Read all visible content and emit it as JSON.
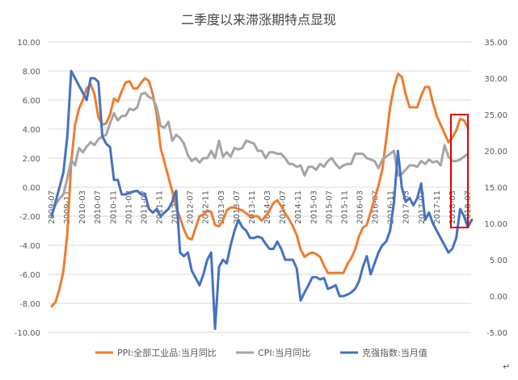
{
  "chart_data": {
    "type": "line",
    "title": "二季度以来滞涨期特点显现",
    "x_labels": [
      "2009-07",
      "2009-11",
      "2010-03",
      "2010-07",
      "2010-11",
      "2011-03",
      "2011-07",
      "2011-11",
      "2012-03",
      "2012-07",
      "2012-11",
      "2013-03",
      "2013-07",
      "2013-11",
      "2014-03",
      "2014-07",
      "2014-11",
      "2015-03",
      "2015-07",
      "2015-11",
      "2016-03",
      "2016-07",
      "2016-11",
      "2017-03",
      "2017-07",
      "2017-11",
      "2018-03",
      "2018-07"
    ],
    "left_axis": {
      "min": -10,
      "max": 10,
      "step": 2,
      "tick_labels": [
        "10.00",
        "8.00",
        "6.00",
        "4.00",
        "2.00",
        "0.00",
        "-2.00",
        "-4.00",
        "-6.00",
        "-8.00",
        "-10.00"
      ]
    },
    "right_axis": {
      "min": -5,
      "max": 35,
      "step": 5,
      "tick_labels": [
        "35.00",
        "30.00",
        "25.00",
        "20.00",
        "15.00",
        "10.00",
        "5.00",
        "0.00",
        "-5.00"
      ]
    },
    "grid": true,
    "legend_position": "bottom",
    "series": [
      {
        "name": "PPI:全部工业品:当月同比",
        "axis": "left",
        "color": "#ED7D31",
        "values": [
          -8.2,
          -7.9,
          -7.0,
          -5.8,
          -3.2,
          1.7,
          4.3,
          5.4,
          6.0,
          6.8,
          7.1,
          6.4,
          4.8,
          4.3,
          4.4,
          5.0,
          6.1,
          5.9,
          6.6,
          7.2,
          7.3,
          6.8,
          6.8,
          7.2,
          7.5,
          7.3,
          6.4,
          5.0,
          2.7,
          1.7,
          0.7,
          -0.3,
          -1.4,
          -2.1,
          -2.9,
          -3.5,
          -3.6,
          -2.8,
          -2.0,
          -1.9,
          -1.6,
          -1.7,
          -2.6,
          -2.7,
          -2.3,
          -1.6,
          -1.4,
          -1.4,
          -1.5,
          -1.6,
          -1.8,
          -2.0,
          -2.0,
          -2.0,
          -2.3,
          -2.0,
          -1.6,
          -1.1,
          -0.9,
          -1.3,
          -1.8,
          -2.2,
          -2.7,
          -3.3,
          -4.3,
          -4.8,
          -4.6,
          -4.5,
          -4.6,
          -4.8,
          -5.4,
          -5.9,
          -5.9,
          -5.9,
          -5.9,
          -5.9,
          -5.3,
          -4.9,
          -4.3,
          -3.4,
          -2.8,
          -2.6,
          -1.7,
          -0.8,
          0.1,
          1.2,
          3.3,
          5.5,
          6.9,
          7.8,
          7.6,
          6.4,
          5.5,
          5.5,
          5.5,
          6.3,
          6.9,
          6.9,
          5.8,
          4.9,
          4.3,
          3.7,
          3.1,
          3.4,
          3.9,
          4.7,
          4.6,
          4.1
        ]
      },
      {
        "name": "CPI:当月同比",
        "axis": "left",
        "color": "#A5A5A5",
        "values": [
          -1.8,
          -1.2,
          -0.8,
          -0.5,
          0.6,
          1.9,
          1.5,
          2.7,
          2.4,
          2.8,
          3.1,
          2.9,
          3.3,
          3.5,
          3.6,
          4.4,
          5.1,
          4.6,
          4.9,
          4.9,
          5.4,
          5.3,
          5.5,
          6.4,
          6.5,
          6.2,
          6.1,
          5.5,
          4.2,
          4.1,
          4.5,
          3.2,
          3.6,
          3.4,
          3.0,
          2.2,
          1.8,
          2.0,
          1.7,
          2.0,
          2.0,
          2.5,
          2.0,
          3.2,
          2.1,
          2.4,
          2.1,
          2.7,
          2.6,
          2.7,
          3.2,
          3.1,
          3.0,
          2.5,
          2.5,
          2.0,
          2.4,
          2.4,
          2.3,
          2.3,
          2.0,
          1.6,
          1.6,
          1.4,
          1.5,
          0.8,
          1.4,
          1.4,
          1.2,
          1.6,
          1.4,
          1.8,
          2.0,
          1.6,
          1.3,
          1.5,
          1.6,
          1.6,
          2.3,
          2.3,
          2.3,
          2.0,
          1.9,
          1.8,
          1.3,
          1.9,
          2.1,
          2.3,
          2.5,
          0.8,
          0.9,
          1.2,
          1.5,
          1.5,
          1.4,
          1.8,
          1.6,
          1.9,
          1.7,
          1.8,
          1.5,
          2.9,
          2.1,
          1.8,
          1.8,
          1.9,
          2.1,
          2.3
        ]
      },
      {
        "name": "克强指数:当月值",
        "axis": "right",
        "color": "#4472C4",
        "values": [
          11.0,
          13.0,
          15.0,
          17.0,
          22.0,
          31.0,
          30.0,
          29.0,
          28.0,
          27.0,
          30.0,
          30.0,
          29.5,
          22.0,
          21.0,
          20.5,
          16.0,
          16.0,
          14.0,
          14.0,
          14.2,
          14.4,
          14.5,
          14.0,
          14.0,
          12.0,
          11.5,
          12.0,
          11.0,
          11.5,
          12.0,
          13.0,
          14.5,
          6.0,
          5.5,
          6.0,
          3.5,
          2.5,
          1.5,
          3.0,
          5.0,
          6.0,
          -4.5,
          4.0,
          5.0,
          4.5,
          7.0,
          9.0,
          10.5,
          9.5,
          9.0,
          8.0,
          8.0,
          8.2,
          8.0,
          7.2,
          6.5,
          6.5,
          7.5,
          6.5,
          5.0,
          5.0,
          5.0,
          3.8,
          -0.6,
          0.5,
          1.5,
          2.6,
          2.6,
          2.3,
          2.5,
          1.0,
          1.2,
          1.5,
          0.0,
          0.0,
          0.2,
          0.5,
          1.0,
          2.0,
          4.0,
          5.5,
          3.0,
          4.5,
          6.0,
          7.0,
          7.5,
          9.0,
          13.0,
          20.0,
          15.0,
          13.0,
          13.5,
          12.5,
          13.5,
          15.5,
          10.5,
          11.5,
          10.0,
          9.0,
          8.0,
          7.0,
          6.0,
          6.5,
          8.0,
          12.0,
          11.0,
          9.5,
          10.5
        ]
      }
    ]
  }
}
